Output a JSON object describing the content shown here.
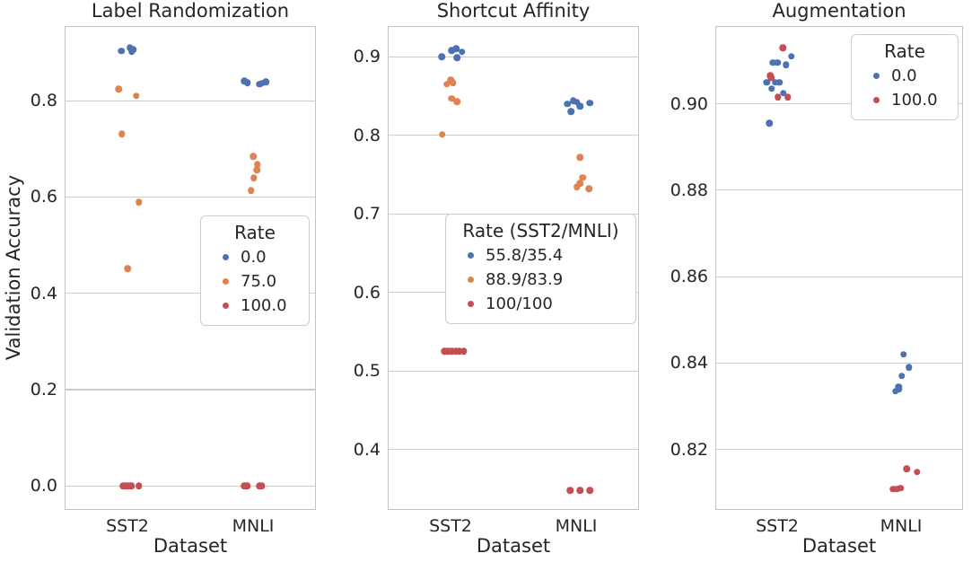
{
  "figure": {
    "ylabel": "Validation Accuracy",
    "background": "#ffffff",
    "grid_color": "#cccccc",
    "text_color": "#262626",
    "palette": {
      "blue": "#4C72B0",
      "orange": "#DD8452",
      "red": "#C44E52"
    }
  },
  "chart_data": [
    {
      "type": "scatter",
      "title": "Label Randomization",
      "xlabel": "Dataset",
      "ylabel": "Validation Accuracy",
      "categories": [
        "SST2",
        "MNLI"
      ],
      "xlim": [
        -0.5,
        1.5
      ],
      "ylim": [
        -0.05,
        0.955
      ],
      "yticks": [
        0.0,
        0.2,
        0.4,
        0.6,
        0.8
      ],
      "ytick_labels": [
        "0.0",
        "0.2",
        "0.4",
        "0.6",
        "0.8"
      ],
      "grid": true,
      "legend": {
        "title": "Rate",
        "position": "inside-right-middle",
        "entries": [
          {
            "label": "0.0",
            "color": "blue"
          },
          {
            "label": "75.0",
            "color": "orange"
          },
          {
            "label": "100.0",
            "color": "red"
          }
        ]
      },
      "series": [
        {
          "name": "0.0",
          "color": "blue",
          "points": [
            [
              -0.05,
              0.903
            ],
            [
              0.02,
              0.91
            ],
            [
              0.035,
              0.901
            ],
            [
              0.045,
              0.906
            ],
            [
              0.93,
              0.841
            ],
            [
              0.955,
              0.837
            ],
            [
              1.05,
              0.834
            ],
            [
              1.07,
              0.836
            ],
            [
              1.1,
              0.839
            ]
          ]
        },
        {
          "name": "75.0",
          "color": "orange",
          "points": [
            [
              -0.07,
              0.824
            ],
            [
              0.07,
              0.81
            ],
            [
              -0.045,
              0.731
            ],
            [
              0.09,
              0.589
            ],
            [
              0.0,
              0.451
            ],
            [
              1.0,
              0.684
            ],
            [
              1.035,
              0.667
            ],
            [
              1.03,
              0.656
            ],
            [
              1.005,
              0.639
            ],
            [
              0.985,
              0.613
            ]
          ]
        },
        {
          "name": "100.0",
          "color": "red",
          "points": [
            [
              -0.035,
              0.0
            ],
            [
              -0.015,
              0.0
            ],
            [
              0.005,
              0.0
            ],
            [
              0.03,
              0.0
            ],
            [
              0.09,
              0.0
            ],
            [
              0.93,
              0.0
            ],
            [
              0.95,
              0.0
            ],
            [
              1.05,
              0.0
            ],
            [
              1.07,
              0.0
            ]
          ]
        }
      ]
    },
    {
      "type": "scatter",
      "title": "Shortcut Affinity",
      "xlabel": "Dataset",
      "categories": [
        "SST2",
        "MNLI"
      ],
      "xlim": [
        -0.5,
        1.5
      ],
      "ylim": [
        0.323,
        0.939
      ],
      "yticks": [
        0.4,
        0.5,
        0.6,
        0.7,
        0.8,
        0.9
      ],
      "ytick_labels": [
        "0.4",
        "0.5",
        "0.6",
        "0.7",
        "0.8",
        "0.9"
      ],
      "grid": true,
      "legend": {
        "title": "Rate (SST2/MNLI)",
        "position": "inside-center-bottom",
        "entries": [
          {
            "label": "55.8/35.4",
            "color": "blue"
          },
          {
            "label": "88.9/83.9",
            "color": "orange"
          },
          {
            "label": "100/100",
            "color": "red"
          }
        ]
      },
      "series": [
        {
          "name": "55.8/35.4",
          "color": "blue",
          "points": [
            [
              -0.07,
              0.9
            ],
            [
              0.01,
              0.908
            ],
            [
              0.045,
              0.91
            ],
            [
              0.09,
              0.906
            ],
            [
              0.05,
              0.899
            ],
            [
              0.93,
              0.84
            ],
            [
              0.975,
              0.844
            ],
            [
              1.005,
              0.842
            ],
            [
              0.96,
              0.83
            ],
            [
              1.03,
              0.837
            ],
            [
              1.11,
              0.841
            ]
          ]
        },
        {
          "name": "88.9/83.9",
          "color": "orange",
          "points": [
            [
              -0.03,
              0.865
            ],
            [
              0.0,
              0.87
            ],
            [
              0.02,
              0.867
            ],
            [
              0.01,
              0.847
            ],
            [
              0.05,
              0.843
            ],
            [
              -0.065,
              0.801
            ],
            [
              1.03,
              0.772
            ],
            [
              1.05,
              0.746
            ],
            [
              1.03,
              0.739
            ],
            [
              1.005,
              0.734
            ],
            [
              1.1,
              0.732
            ]
          ]
        },
        {
          "name": "100/100",
          "color": "red",
          "points": [
            [
              -0.05,
              0.525
            ],
            [
              -0.02,
              0.525
            ],
            [
              0.01,
              0.525
            ],
            [
              0.04,
              0.525
            ],
            [
              0.07,
              0.525
            ],
            [
              0.105,
              0.525
            ],
            [
              0.95,
              0.348
            ],
            [
              1.03,
              0.348
            ],
            [
              1.11,
              0.348
            ]
          ]
        }
      ]
    },
    {
      "type": "scatter",
      "title": "Augmentation",
      "xlabel": "Dataset",
      "categories": [
        "SST2",
        "MNLI"
      ],
      "xlim": [
        -0.5,
        1.5
      ],
      "ylim": [
        0.806,
        0.918
      ],
      "yticks": [
        0.82,
        0.84,
        0.86,
        0.88,
        0.9
      ],
      "ytick_labels": [
        "0.82",
        "0.84",
        "0.86",
        "0.88",
        "0.90"
      ],
      "grid": true,
      "legend": {
        "title": "Rate",
        "position": "inside-right-top",
        "entries": [
          {
            "label": "0.0",
            "color": "blue"
          },
          {
            "label": "100.0",
            "color": "red"
          }
        ]
      },
      "series": [
        {
          "name": "0.0",
          "color": "blue",
          "points": [
            [
              0.115,
              0.911
            ],
            [
              -0.035,
              0.9095
            ],
            [
              0.0,
              0.9095
            ],
            [
              0.07,
              0.909
            ],
            [
              -0.085,
              0.905
            ],
            [
              -0.015,
              0.905
            ],
            [
              0.015,
              0.905
            ],
            [
              -0.045,
              0.9035
            ],
            [
              0.05,
              0.9025
            ],
            [
              -0.065,
              0.8955
            ],
            [
              1.02,
              0.842
            ],
            [
              1.065,
              0.839
            ],
            [
              1.005,
              0.837
            ],
            [
              0.98,
              0.8345
            ],
            [
              0.955,
              0.8335
            ],
            [
              0.985,
              0.834
            ]
          ]
        },
        {
          "name": "100.0",
          "color": "red",
          "points": [
            [
              0.045,
              0.913
            ],
            [
              -0.055,
              0.9065
            ],
            [
              -0.05,
              0.906
            ],
            [
              0.005,
              0.9015
            ],
            [
              0.085,
              0.9015
            ],
            [
              1.045,
              0.8155
            ],
            [
              1.13,
              0.8148
            ],
            [
              0.935,
              0.8108
            ],
            [
              0.965,
              0.8108
            ],
            [
              0.995,
              0.811
            ]
          ]
        }
      ]
    }
  ]
}
